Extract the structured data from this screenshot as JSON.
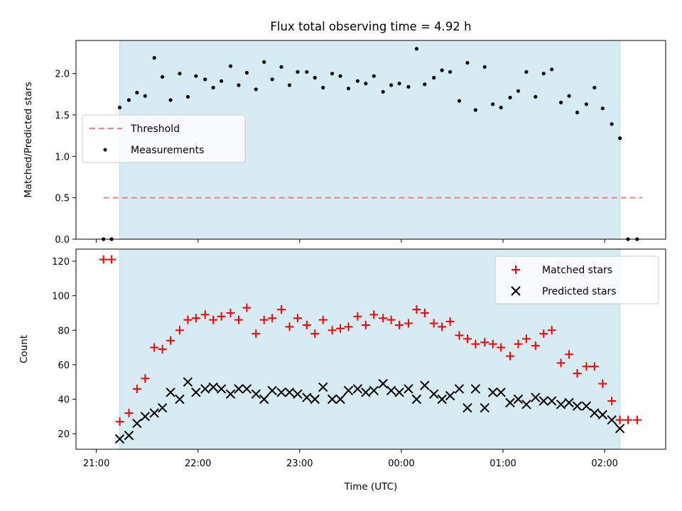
{
  "chart_data": [
    {
      "type": "scatter",
      "title": "Flux total observing time = 4.92 h",
      "ylabel": "Matched/Predicted stars",
      "xlabel": "",
      "x_ticks": [
        "21:00",
        "22:00",
        "23:00",
        "00:00",
        "01:00",
        "02:00"
      ],
      "y_ticks": [
        "0.0",
        "0.5",
        "1.0",
        "1.5",
        "2.0"
      ],
      "ylim": [
        0,
        2.4
      ],
      "x_unit": "hours after 21:00 UTC",
      "xlim": [
        -0.2,
        5.6
      ],
      "observing_window": [
        0.23,
        5.15
      ],
      "threshold": {
        "name": "Threshold",
        "value": 0.5,
        "x_range": [
          0.07,
          5.37
        ],
        "color": "#f08080"
      },
      "series": [
        {
          "name": "Measurements",
          "color": "#000000",
          "points": [
            [
              0.07,
              0.0
            ],
            [
              0.15,
              0.0
            ],
            [
              0.23,
              1.59
            ],
            [
              0.32,
              1.68
            ],
            [
              0.4,
              1.77
            ],
            [
              0.48,
              1.73
            ],
            [
              0.57,
              2.19
            ],
            [
              0.65,
              1.96
            ],
            [
              0.73,
              1.68
            ],
            [
              0.82,
              2.0
            ],
            [
              0.9,
              1.72
            ],
            [
              0.98,
              1.97
            ],
            [
              1.07,
              1.93
            ],
            [
              1.15,
              1.83
            ],
            [
              1.23,
              1.91
            ],
            [
              1.32,
              2.09
            ],
            [
              1.4,
              1.86
            ],
            [
              1.48,
              2.01
            ],
            [
              1.57,
              1.81
            ],
            [
              1.65,
              2.14
            ],
            [
              1.73,
              1.93
            ],
            [
              1.82,
              2.08
            ],
            [
              1.9,
              1.86
            ],
            [
              1.98,
              2.02
            ],
            [
              2.07,
              2.02
            ],
            [
              2.15,
              1.95
            ],
            [
              2.23,
              1.83
            ],
            [
              2.32,
              2.0
            ],
            [
              2.4,
              1.97
            ],
            [
              2.48,
              1.82
            ],
            [
              2.57,
              1.91
            ],
            [
              2.65,
              1.88
            ],
            [
              2.73,
              1.97
            ],
            [
              2.82,
              1.78
            ],
            [
              2.9,
              1.86
            ],
            [
              2.98,
              1.88
            ],
            [
              3.07,
              1.84
            ],
            [
              3.15,
              2.3
            ],
            [
              3.23,
              1.87
            ],
            [
              3.32,
              1.95
            ],
            [
              3.4,
              2.04
            ],
            [
              3.48,
              2.02
            ],
            [
              3.57,
              1.67
            ],
            [
              3.65,
              2.13
            ],
            [
              3.73,
              1.56
            ],
            [
              3.82,
              2.08
            ],
            [
              3.9,
              1.63
            ],
            [
              3.98,
              1.59
            ],
            [
              4.07,
              1.71
            ],
            [
              4.15,
              1.79
            ],
            [
              4.23,
              2.02
            ],
            [
              4.32,
              1.72
            ],
            [
              4.4,
              2.0
            ],
            [
              4.48,
              2.05
            ],
            [
              4.57,
              1.65
            ],
            [
              4.65,
              1.73
            ],
            [
              4.73,
              1.53
            ],
            [
              4.82,
              1.63
            ],
            [
              4.9,
              1.83
            ],
            [
              4.98,
              1.58
            ],
            [
              5.07,
              1.39
            ],
            [
              5.15,
              1.22
            ],
            [
              5.23,
              0.0
            ],
            [
              5.32,
              0.0
            ]
          ]
        }
      ],
      "legend": {
        "position": "center-left"
      }
    },
    {
      "type": "scatter",
      "title": "",
      "ylabel": "Count",
      "xlabel": "Time (UTC)",
      "x_ticks": [
        "21:00",
        "22:00",
        "23:00",
        "00:00",
        "01:00",
        "02:00"
      ],
      "y_ticks": [
        "20",
        "40",
        "60",
        "80",
        "100",
        "120"
      ],
      "ylim": [
        11,
        127
      ],
      "x_unit": "hours after 21:00 UTC",
      "xlim": [
        -0.2,
        5.6
      ],
      "observing_window": [
        0.23,
        5.15
      ],
      "series": [
        {
          "name": "Matched stars",
          "marker": "plus",
          "color": "#ff0000",
          "points": [
            [
              0.07,
              121
            ],
            [
              0.15,
              121
            ],
            [
              0.23,
              27
            ],
            [
              0.32,
              32
            ],
            [
              0.4,
              46
            ],
            [
              0.48,
              52
            ],
            [
              0.57,
              70
            ],
            [
              0.65,
              69
            ],
            [
              0.73,
              74
            ],
            [
              0.82,
              80
            ],
            [
              0.9,
              86
            ],
            [
              0.98,
              87
            ],
            [
              1.07,
              89
            ],
            [
              1.15,
              86
            ],
            [
              1.23,
              88
            ],
            [
              1.32,
              90
            ],
            [
              1.4,
              86
            ],
            [
              1.48,
              93
            ],
            [
              1.57,
              78
            ],
            [
              1.65,
              86
            ],
            [
              1.73,
              87
            ],
            [
              1.82,
              92
            ],
            [
              1.9,
              82
            ],
            [
              1.98,
              87
            ],
            [
              2.07,
              83
            ],
            [
              2.15,
              78
            ],
            [
              2.23,
              86
            ],
            [
              2.32,
              80
            ],
            [
              2.4,
              81
            ],
            [
              2.48,
              82
            ],
            [
              2.57,
              88
            ],
            [
              2.65,
              83
            ],
            [
              2.73,
              89
            ],
            [
              2.82,
              87
            ],
            [
              2.9,
              86
            ],
            [
              2.98,
              83
            ],
            [
              3.07,
              84
            ],
            [
              3.15,
              92
            ],
            [
              3.23,
              90
            ],
            [
              3.32,
              84
            ],
            [
              3.4,
              82
            ],
            [
              3.48,
              85
            ],
            [
              3.57,
              77
            ],
            [
              3.65,
              75
            ],
            [
              3.73,
              72
            ],
            [
              3.82,
              73
            ],
            [
              3.9,
              72
            ],
            [
              3.98,
              70
            ],
            [
              4.07,
              65
            ],
            [
              4.15,
              72
            ],
            [
              4.23,
              75
            ],
            [
              4.32,
              71
            ],
            [
              4.4,
              78
            ],
            [
              4.48,
              80
            ],
            [
              4.57,
              61
            ],
            [
              4.65,
              66
            ],
            [
              4.73,
              55
            ],
            [
              4.82,
              59
            ],
            [
              4.9,
              59
            ],
            [
              4.98,
              49
            ],
            [
              5.07,
              39
            ],
            [
              5.15,
              28
            ],
            [
              5.23,
              28
            ],
            [
              5.32,
              28
            ]
          ]
        },
        {
          "name": "Predicted stars",
          "marker": "x",
          "color": "#000000",
          "points": [
            [
              0.23,
              17
            ],
            [
              0.32,
              19
            ],
            [
              0.4,
              26
            ],
            [
              0.48,
              30
            ],
            [
              0.57,
              32
            ],
            [
              0.65,
              35
            ],
            [
              0.73,
              44
            ],
            [
              0.82,
              40
            ],
            [
              0.9,
              50
            ],
            [
              0.98,
              44
            ],
            [
              1.07,
              46
            ],
            [
              1.15,
              47
            ],
            [
              1.23,
              46
            ],
            [
              1.32,
              43
            ],
            [
              1.4,
              46
            ],
            [
              1.48,
              46
            ],
            [
              1.57,
              43
            ],
            [
              1.65,
              40
            ],
            [
              1.73,
              45
            ],
            [
              1.82,
              44
            ],
            [
              1.9,
              44
            ],
            [
              1.98,
              43
            ],
            [
              2.07,
              41
            ],
            [
              2.15,
              40
            ],
            [
              2.23,
              47
            ],
            [
              2.32,
              40
            ],
            [
              2.4,
              40
            ],
            [
              2.48,
              45
            ],
            [
              2.57,
              46
            ],
            [
              2.65,
              44
            ],
            [
              2.73,
              45
            ],
            [
              2.82,
              49
            ],
            [
              2.9,
              45
            ],
            [
              2.98,
              44
            ],
            [
              3.07,
              46
            ],
            [
              3.15,
              40
            ],
            [
              3.23,
              48
            ],
            [
              3.32,
              43
            ],
            [
              3.4,
              40
            ],
            [
              3.48,
              42
            ],
            [
              3.57,
              46
            ],
            [
              3.65,
              35
            ],
            [
              3.73,
              46
            ],
            [
              3.82,
              35
            ],
            [
              3.9,
              44
            ],
            [
              3.98,
              44
            ],
            [
              4.07,
              38
            ],
            [
              4.15,
              40
            ],
            [
              4.23,
              37
            ],
            [
              4.32,
              41
            ],
            [
              4.4,
              39
            ],
            [
              4.48,
              39
            ],
            [
              4.57,
              37
            ],
            [
              4.65,
              38
            ],
            [
              4.73,
              36
            ],
            [
              4.82,
              36
            ],
            [
              4.9,
              32
            ],
            [
              4.98,
              31
            ],
            [
              5.07,
              28
            ],
            [
              5.15,
              23
            ]
          ]
        }
      ],
      "legend": {
        "position": "top-right"
      }
    }
  ],
  "colors": {
    "observing_window_fill": "#add8e6",
    "threshold_line": "#f08080",
    "matched": "#ff0000",
    "predicted": "#000000"
  }
}
